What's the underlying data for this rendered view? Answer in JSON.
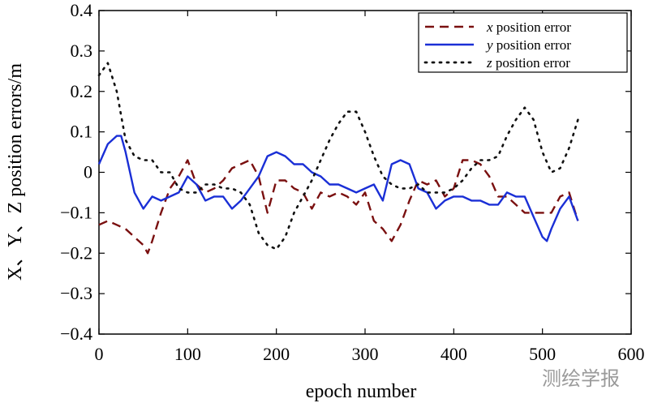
{
  "chart_data": {
    "type": "line",
    "title": "",
    "xlabel": "epoch number",
    "ylabel": "X、Y、Z position errors/m",
    "xlim": [
      0,
      600
    ],
    "ylim": [
      -0.4,
      0.4
    ],
    "xticks": [
      0,
      100,
      200,
      300,
      400,
      500,
      600
    ],
    "yticks": [
      -0.4,
      -0.3,
      -0.2,
      -0.1,
      0,
      0.1,
      0.2,
      0.3,
      0.4
    ],
    "ytick_labels": [
      "−0.4",
      "−0.3",
      "−0.2",
      "−0.1",
      "0",
      "0.1",
      "0.2",
      "0.3",
      "0.4"
    ],
    "grid": false,
    "legend_position": "top-right",
    "series": [
      {
        "name": "x position error",
        "var": "x",
        "suffix": " position error",
        "color": "#7a1010",
        "style": "dashed",
        "x": [
          0,
          10,
          20,
          30,
          40,
          50,
          55,
          60,
          70,
          80,
          90,
          100,
          110,
          120,
          130,
          140,
          150,
          160,
          170,
          180,
          190,
          200,
          210,
          220,
          230,
          240,
          250,
          260,
          270,
          280,
          290,
          300,
          310,
          320,
          330,
          340,
          350,
          360,
          370,
          380,
          390,
          400,
          410,
          420,
          430,
          440,
          450,
          460,
          470,
          480,
          490,
          500,
          510,
          520,
          530,
          540
        ],
        "y": [
          -0.13,
          -0.12,
          -0.13,
          -0.14,
          -0.16,
          -0.18,
          -0.2,
          -0.17,
          -0.1,
          -0.04,
          -0.01,
          0.03,
          -0.03,
          -0.05,
          -0.04,
          -0.02,
          0.01,
          0.02,
          0.03,
          -0.01,
          -0.1,
          -0.02,
          -0.02,
          -0.04,
          -0.05,
          -0.09,
          -0.05,
          -0.06,
          -0.05,
          -0.06,
          -0.08,
          -0.05,
          -0.12,
          -0.14,
          -0.17,
          -0.13,
          -0.07,
          -0.02,
          -0.03,
          -0.02,
          -0.06,
          -0.04,
          0.03,
          0.03,
          0.02,
          -0.01,
          -0.06,
          -0.06,
          -0.08,
          -0.1,
          -0.1,
          -0.1,
          -0.1,
          -0.06,
          -0.05,
          -0.12
        ]
      },
      {
        "name": "y position error",
        "var": "y",
        "suffix": " position error",
        "color": "#1a2fd6",
        "style": "solid",
        "x": [
          0,
          10,
          20,
          25,
          30,
          40,
          50,
          60,
          70,
          80,
          90,
          100,
          110,
          120,
          130,
          140,
          150,
          160,
          170,
          180,
          190,
          200,
          210,
          220,
          230,
          240,
          250,
          260,
          270,
          280,
          290,
          300,
          310,
          320,
          330,
          340,
          350,
          360,
          370,
          380,
          390,
          400,
          410,
          420,
          430,
          440,
          450,
          460,
          470,
          480,
          490,
          500,
          505,
          510,
          520,
          530,
          540
        ],
        "y": [
          0.02,
          0.07,
          0.09,
          0.09,
          0.05,
          -0.05,
          -0.09,
          -0.06,
          -0.07,
          -0.06,
          -0.05,
          -0.01,
          -0.03,
          -0.07,
          -0.06,
          -0.06,
          -0.09,
          -0.07,
          -0.04,
          -0.01,
          0.04,
          0.05,
          0.04,
          0.02,
          0.02,
          0.0,
          -0.01,
          -0.03,
          -0.03,
          -0.04,
          -0.05,
          -0.04,
          -0.03,
          -0.07,
          0.02,
          0.03,
          0.02,
          -0.04,
          -0.05,
          -0.09,
          -0.07,
          -0.06,
          -0.06,
          -0.07,
          -0.07,
          -0.08,
          -0.08,
          -0.05,
          -0.06,
          -0.06,
          -0.11,
          -0.16,
          -0.17,
          -0.14,
          -0.09,
          -0.06,
          -0.12
        ]
      },
      {
        "name": "z position error",
        "var": "z",
        "suffix": " position error",
        "color": "#111111",
        "style": "dotted",
        "x": [
          0,
          10,
          20,
          30,
          40,
          50,
          60,
          70,
          80,
          90,
          100,
          110,
          120,
          130,
          140,
          150,
          160,
          170,
          180,
          190,
          200,
          210,
          220,
          230,
          240,
          250,
          260,
          270,
          280,
          290,
          300,
          310,
          320,
          330,
          340,
          350,
          360,
          370,
          380,
          390,
          400,
          410,
          420,
          430,
          440,
          450,
          460,
          470,
          480,
          490,
          500,
          510,
          520,
          530,
          540
        ],
        "y": [
          0.24,
          0.27,
          0.2,
          0.08,
          0.04,
          0.03,
          0.03,
          0.0,
          0.0,
          -0.04,
          -0.05,
          -0.05,
          -0.03,
          -0.03,
          -0.04,
          -0.04,
          -0.05,
          -0.08,
          -0.15,
          -0.18,
          -0.19,
          -0.16,
          -0.1,
          -0.06,
          -0.02,
          0.03,
          0.08,
          0.12,
          0.15,
          0.15,
          0.1,
          0.04,
          -0.01,
          -0.03,
          -0.04,
          -0.04,
          -0.03,
          -0.05,
          -0.05,
          -0.05,
          -0.04,
          -0.02,
          0.01,
          0.03,
          0.03,
          0.04,
          0.09,
          0.13,
          0.16,
          0.13,
          0.05,
          0.0,
          0.01,
          0.06,
          0.13
        ]
      }
    ]
  },
  "watermark": "测绘学报"
}
